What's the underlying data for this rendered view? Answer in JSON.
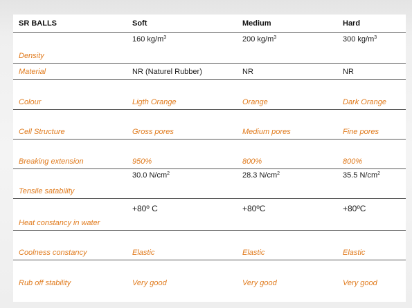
{
  "table": {
    "headers": [
      "SR BALLS",
      "Soft",
      "Medium",
      "Hard"
    ],
    "rows": [
      {
        "label": "Density",
        "values": [
          "160 kg/m",
          "200 kg/m",
          "300 kg/m"
        ],
        "sup": "3",
        "style": "plain"
      },
      {
        "label": "Material",
        "values": [
          "NR (Naturel Rubber)",
          "NR",
          "NR"
        ],
        "style": "plain"
      },
      {
        "label": "Colour",
        "values": [
          "Ligth Orange",
          "Orange",
          "Dark Orange"
        ],
        "style": "italic"
      },
      {
        "label": "Cell Structure",
        "values": [
          "Gross pores",
          "Medium pores",
          "Fine pores"
        ],
        "style": "italic"
      },
      {
        "label": "Breaking extension",
        "values": [
          "950%",
          "800%",
          "800%"
        ],
        "style": "italic"
      },
      {
        "label": "Tensile satability",
        "values": [
          "30.0 N/cm",
          "28.3 N/cm",
          "35.5 N/cm"
        ],
        "sup": "2",
        "style": "plain"
      },
      {
        "label": "Heat constancy in water",
        "values": [
          "+80º C",
          "+80ºC",
          "+80ºC"
        ],
        "style": "plain"
      },
      {
        "label": "Coolness constancy",
        "values": [
          "Elastic",
          "Elastic",
          "Elastic"
        ],
        "style": "italic"
      },
      {
        "label": "Rub off stability",
        "values": [
          "Very good",
          "Very good",
          "Very good"
        ],
        "style": "italic"
      }
    ]
  },
  "colors": {
    "label": "#e07a1c",
    "text": "#1a1a1a",
    "rule": "#555555"
  }
}
